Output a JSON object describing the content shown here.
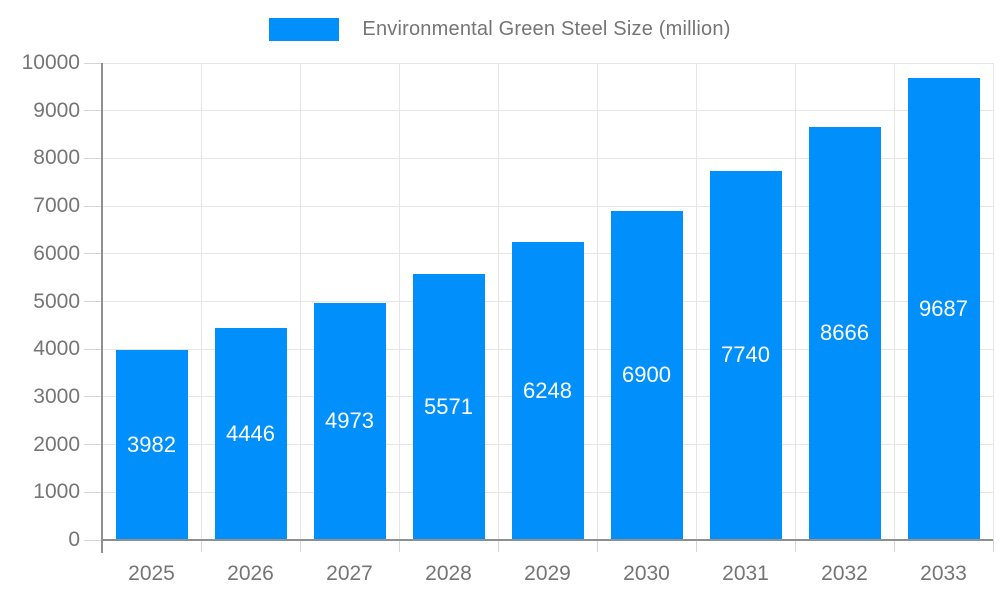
{
  "chart_data": {
    "type": "bar",
    "title": "Environmental Green Steel Size (million)",
    "legend": {
      "label": "Environmental Green Steel Size (million)",
      "position": "top-center"
    },
    "categories": [
      "2025",
      "2026",
      "2027",
      "2028",
      "2029",
      "2030",
      "2031",
      "2032",
      "2033"
    ],
    "series": [
      {
        "name": "Environmental Green Steel Size (million)",
        "values": [
          3982,
          4446,
          4973,
          5571,
          6248,
          6900,
          7740,
          8666,
          9687
        ]
      }
    ],
    "xlabel": "",
    "ylabel": "",
    "ylim": [
      0,
      10000
    ],
    "ytick_step": 1000,
    "ytick_labels": [
      "0",
      "1000",
      "2000",
      "3000",
      "4000",
      "5000",
      "6000",
      "7000",
      "8000",
      "9000",
      "10000"
    ],
    "grid": "horizontal-and-vertical",
    "data_labels": "inside-center",
    "colors": {
      "bar": "#008FFB",
      "data_label_text": "#ffffff",
      "axis_text": "#757575",
      "legend_text": "#757575",
      "gridline": "#e6e6e6",
      "tick_mark": "#d6d6d6",
      "axis_line": "#8f8f8f",
      "background": "#ffffff"
    }
  }
}
